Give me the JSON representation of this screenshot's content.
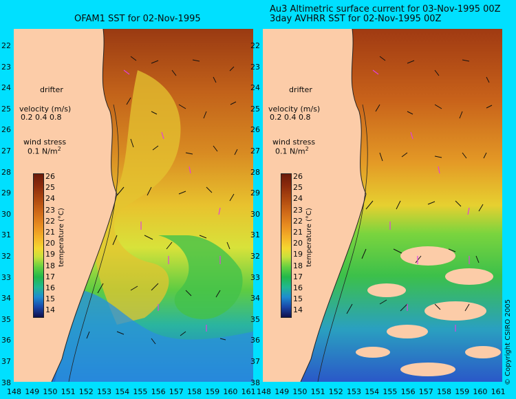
{
  "titles": {
    "left": "OFAM1 SST for 02-Nov-1995",
    "right_line1": "Au3 Altimetric surface current for 03-Nov-1995 00Z",
    "right_line2": "3day AVHRR SST for 02-Nov-1995 00Z"
  },
  "legend": {
    "drifter": "drifter",
    "velocity_label": "velocity (m/s)",
    "velocity_scale": "0.2 0.4 0.8",
    "wind_label": "wind stress",
    "wind_scale": "0.1 N/m",
    "wind_sup": "2"
  },
  "colorbar": {
    "axis_label": "temperature (°C)",
    "ticks": [
      "26",
      "25",
      "24",
      "23",
      "22",
      "21",
      "20",
      "19",
      "18",
      "17",
      "16",
      "15",
      "14"
    ]
  },
  "lat_labels": [
    "22",
    "23",
    "24",
    "25",
    "26",
    "27",
    "28",
    "29",
    "30",
    "31",
    "32",
    "33",
    "34",
    "35",
    "36",
    "37",
    "38"
  ],
  "lon_labels": [
    "148",
    "149",
    "150",
    "151",
    "152",
    "153",
    "154",
    "155",
    "156",
    "157",
    "158",
    "159",
    "160",
    "161"
  ],
  "copyright": "© Copyright CSIRO 2005",
  "colors": {
    "background": "#00e0ff",
    "land": "#fccca8",
    "vector": "#111111",
    "wind_vector": "#e040e0"
  }
}
